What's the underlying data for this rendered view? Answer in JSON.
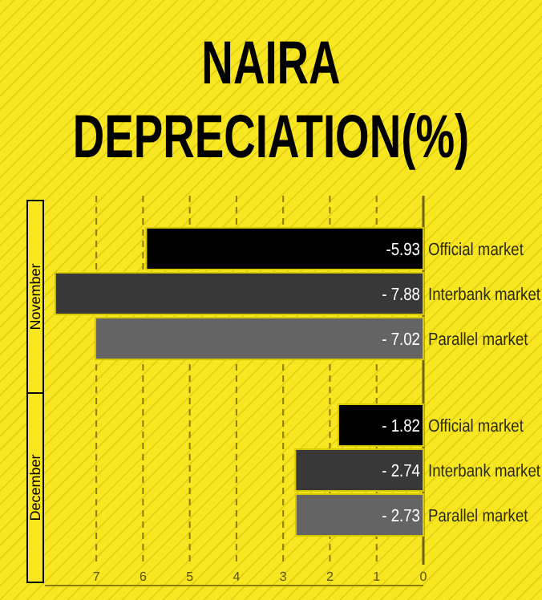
{
  "chart_data": {
    "type": "bar",
    "orientation": "horizontal",
    "title": "NAIRA DEPRECIATION(%)",
    "categories": [
      "Official market",
      "Interbank market",
      "Parallel market",
      "Official market",
      "Interbank market",
      "Parallel market"
    ],
    "values": [
      -5.93,
      -7.88,
      -7.02,
      -1.82,
      -2.74,
      -2.73
    ],
    "value_labels": [
      "-5.93",
      "- 7.88",
      "- 7.02",
      "- 1.82",
      "- 2.74",
      "- 2.73"
    ],
    "colors": [
      "#000000",
      "#383838",
      "#646464",
      "#000000",
      "#383838",
      "#646464"
    ],
    "annotations": [
      "November",
      "December"
    ],
    "xlim": [
      -8.1,
      0
    ],
    "xticks": [
      {
        "value": -7,
        "label": "7"
      },
      {
        "value": -6,
        "label": "6"
      },
      {
        "value": -5,
        "label": "5"
      },
      {
        "value": -4,
        "label": "4"
      },
      {
        "value": -3,
        "label": "3"
      },
      {
        "value": -2,
        "label": "2"
      },
      {
        "value": -1,
        "label": "1"
      },
      0
    ],
    "grid": "x"
  }
}
